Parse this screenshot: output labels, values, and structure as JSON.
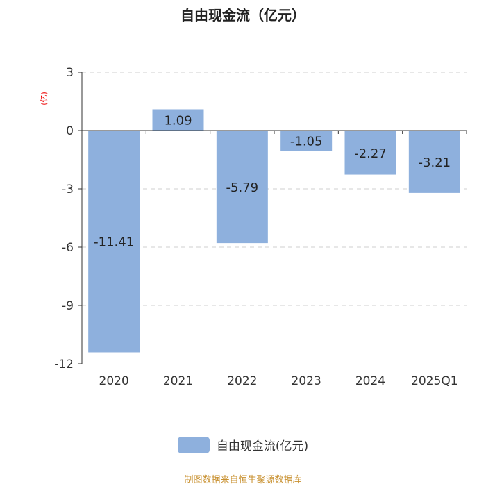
{
  "chart_data": {
    "type": "bar",
    "title": "自由现金流（亿元）",
    "ylabel": "(亿)",
    "categories": [
      "2020",
      "2021",
      "2022",
      "2023",
      "2024",
      "2025Q1"
    ],
    "series": [
      {
        "name": "自由现金流(亿元)",
        "values": [
          -11.41,
          1.09,
          -5.79,
          -1.05,
          -2.27,
          -3.21
        ]
      }
    ],
    "data_labels": [
      "-11.41",
      "1.09",
      "-5.79",
      "-1.05",
      "-2.27",
      "-3.21"
    ],
    "yticks": [
      3,
      0,
      -3,
      -6,
      -9,
      -12
    ],
    "ylim": [
      -12,
      3
    ],
    "grid": true,
    "legend_position": "bottom",
    "bar_color": "#8eb0dd"
  },
  "legend": {
    "label": "自由现金流(亿元)"
  },
  "source": "制图数据来自恒生聚源数据库"
}
